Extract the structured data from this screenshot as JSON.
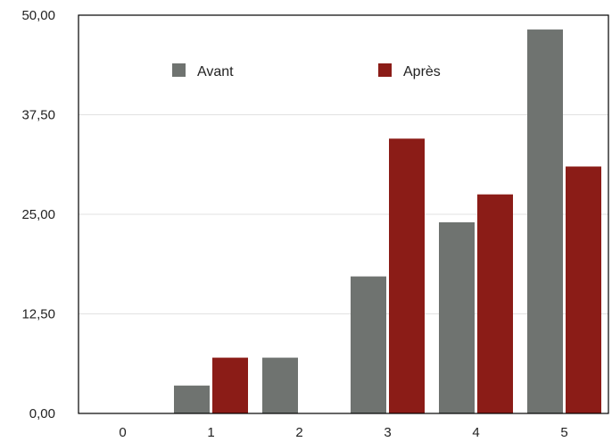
{
  "chart_data": {
    "type": "bar",
    "title": "",
    "xlabel": "",
    "ylabel": "",
    "categories": [
      "0",
      "1",
      "2",
      "3",
      "4",
      "5"
    ],
    "series": [
      {
        "name": "Avant",
        "color": "#6f7370",
        "values": [
          0,
          3.5,
          7.0,
          17.2,
          24.0,
          48.2
        ]
      },
      {
        "name": "Après",
        "color": "#8b1c17",
        "values": [
          0,
          7.0,
          0,
          34.5,
          27.5,
          31.0
        ]
      }
    ],
    "ylim": [
      0,
      50
    ],
    "yticks": [
      0,
      12.5,
      25,
      37.5,
      50
    ],
    "ytick_labels": [
      "0,00",
      "12,50",
      "25,00",
      "37,50",
      "50,00"
    ],
    "grid": true,
    "legend_position": "top"
  }
}
